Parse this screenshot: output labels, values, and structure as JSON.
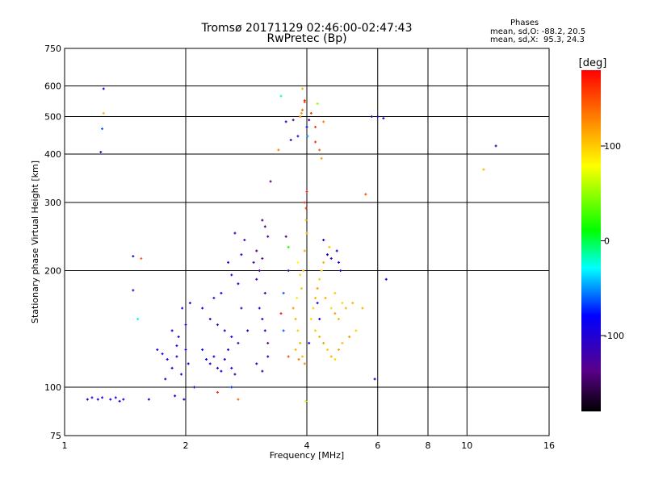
{
  "title_line1": "Tromsø 20171129 02:46:00-02:47:43",
  "title_line2": "RwPretec (Bp)",
  "stats": {
    "heading": "Phases",
    "line1": "mean, sd,O: -88.2, 20.5",
    "line2": "mean, sd,X:  95.3, 24.3"
  },
  "colorbar": {
    "title": "[deg]",
    "ticks": [
      {
        "value": 100,
        "label": "100"
      },
      {
        "value": 0,
        "label": "0"
      },
      {
        "value": -100,
        "label": "-100"
      }
    ],
    "range": [
      -180,
      180
    ],
    "gradient": [
      "#000000",
      "#5a008a",
      "#0000ff",
      "#00ffff",
      "#00ff00",
      "#ffff00",
      "#ff8000",
      "#ff0000"
    ]
  },
  "chart_data": {
    "type": "scatter",
    "xlabel": "Frequency [MHz]",
    "ylabel": "Stationary phase Virtual Height [km]",
    "xscale": "log",
    "yscale": "log",
    "xlim": [
      1,
      16
    ],
    "ylim": [
      75,
      750
    ],
    "grid": true,
    "xticks": [
      {
        "value": 1,
        "label": "1"
      },
      {
        "value": 2,
        "label": "2"
      },
      {
        "value": 4,
        "label": "4"
      },
      {
        "value": 6,
        "label": "6"
      },
      {
        "value": 8,
        "label": "8"
      },
      {
        "value": 10,
        "label": "10"
      },
      {
        "value": 16,
        "label": "16"
      }
    ],
    "yticks": [
      {
        "value": 75,
        "label": "75"
      },
      {
        "value": 100,
        "label": "100"
      },
      {
        "value": 200,
        "label": "200"
      },
      {
        "value": 300,
        "label": "300"
      },
      {
        "value": 400,
        "label": "400"
      },
      {
        "value": 500,
        "label": "500"
      },
      {
        "value": 600,
        "label": "600"
      },
      {
        "value": 750,
        "label": "750"
      }
    ],
    "color_variable": "phase [deg]",
    "points": [
      [
        1.14,
        93,
        -95
      ],
      [
        1.17,
        94,
        -100
      ],
      [
        1.21,
        93,
        -90
      ],
      [
        1.24,
        94,
        -95
      ],
      [
        1.3,
        93,
        -100
      ],
      [
        1.34,
        94,
        -92
      ],
      [
        1.37,
        92,
        -98
      ],
      [
        1.4,
        93,
        -95
      ],
      [
        1.25,
        590,
        -100
      ],
      [
        1.25,
        510,
        110
      ],
      [
        1.24,
        465,
        -60
      ],
      [
        1.23,
        405,
        -110
      ],
      [
        1.48,
        218,
        -100
      ],
      [
        1.55,
        215,
        140
      ],
      [
        1.48,
        178,
        -110
      ],
      [
        1.52,
        150,
        -30
      ],
      [
        1.62,
        93,
        -100
      ],
      [
        1.7,
        125,
        -100
      ],
      [
        1.75,
        122,
        -90
      ],
      [
        1.8,
        118,
        -95
      ],
      [
        1.85,
        112,
        -110
      ],
      [
        1.9,
        120,
        -100
      ],
      [
        1.95,
        108,
        -95
      ],
      [
        2.0,
        125,
        -85
      ],
      [
        1.78,
        105,
        -100
      ],
      [
        1.88,
        95,
        -90
      ],
      [
        1.98,
        93,
        -95
      ],
      [
        1.85,
        140,
        -90
      ],
      [
        1.92,
        135,
        -100
      ],
      [
        2.0,
        145,
        -80
      ],
      [
        1.96,
        160,
        -90
      ],
      [
        2.05,
        165,
        -100
      ],
      [
        1.9,
        128,
        -95
      ],
      [
        2.03,
        115,
        -105
      ],
      [
        2.1,
        100,
        -100
      ],
      [
        2.2,
        125,
        -90
      ],
      [
        2.25,
        118,
        -80
      ],
      [
        2.3,
        115,
        -100
      ],
      [
        2.35,
        120,
        -95
      ],
      [
        2.4,
        112,
        -110
      ],
      [
        2.45,
        110,
        -100
      ],
      [
        2.5,
        118,
        -90
      ],
      [
        2.55,
        125,
        -100
      ],
      [
        2.6,
        112,
        -95
      ],
      [
        2.65,
        108,
        -100
      ],
      [
        2.2,
        160,
        -90
      ],
      [
        2.3,
        150,
        -100
      ],
      [
        2.4,
        145,
        -110
      ],
      [
        2.5,
        140,
        -100
      ],
      [
        2.6,
        135,
        -95
      ],
      [
        2.7,
        130,
        -110
      ],
      [
        2.35,
        170,
        -105
      ],
      [
        2.45,
        175,
        -90
      ],
      [
        2.55,
        210,
        -95
      ],
      [
        2.6,
        195,
        -110
      ],
      [
        2.7,
        185,
        -100
      ],
      [
        2.65,
        250,
        -115
      ],
      [
        2.75,
        220,
        -100
      ],
      [
        2.8,
        240,
        -120
      ],
      [
        2.75,
        160,
        -110
      ],
      [
        2.85,
        140,
        -100
      ],
      [
        2.4,
        97,
        160
      ],
      [
        2.7,
        93,
        140
      ],
      [
        2.6,
        100,
        -70
      ],
      [
        2.95,
        210,
        -130
      ],
      [
        3.0,
        225,
        -140
      ],
      [
        3.05,
        200,
        -120
      ],
      [
        3.1,
        215,
        -135
      ],
      [
        3.15,
        260,
        -140
      ],
      [
        3.2,
        245,
        -130
      ],
      [
        3.1,
        270,
        -145
      ],
      [
        3.0,
        190,
        -125
      ],
      [
        3.05,
        160,
        -110
      ],
      [
        3.1,
        150,
        -100
      ],
      [
        3.15,
        140,
        -115
      ],
      [
        3.2,
        120,
        -105
      ],
      [
        3.0,
        115,
        -100
      ],
      [
        3.1,
        110,
        -120
      ],
      [
        3.2,
        130,
        -140
      ],
      [
        3.15,
        175,
        -125
      ],
      [
        3.25,
        340,
        -140
      ],
      [
        3.45,
        565,
        -20
      ],
      [
        3.4,
        410,
        130
      ],
      [
        3.55,
        245,
        -140
      ],
      [
        3.6,
        230,
        20
      ],
      [
        3.45,
        155,
        170
      ],
      [
        3.5,
        175,
        -60
      ],
      [
        3.6,
        200,
        -120
      ],
      [
        3.55,
        485,
        -110
      ],
      [
        3.65,
        435,
        -120
      ],
      [
        3.7,
        490,
        -130
      ],
      [
        3.8,
        445,
        -100
      ],
      [
        3.85,
        500,
        130
      ],
      [
        3.9,
        520,
        140
      ],
      [
        3.95,
        545,
        150
      ],
      [
        3.9,
        590,
        110
      ],
      [
        3.95,
        550,
        170
      ],
      [
        3.88,
        510,
        120
      ],
      [
        4.0,
        470,
        -80
      ],
      [
        4.02,
        445,
        -40
      ],
      [
        4.05,
        490,
        -130
      ],
      [
        4.1,
        510,
        160
      ],
      [
        4.2,
        470,
        160
      ],
      [
        4.25,
        540,
        50
      ],
      [
        4.4,
        485,
        130
      ],
      [
        3.95,
        300,
        160
      ],
      [
        3.98,
        290,
        150
      ],
      [
        4.0,
        320,
        170
      ],
      [
        4.2,
        430,
        160
      ],
      [
        4.3,
        410,
        140
      ],
      [
        4.35,
        390,
        120
      ],
      [
        3.7,
        160,
        120
      ],
      [
        3.75,
        150,
        110
      ],
      [
        3.8,
        140,
        100
      ],
      [
        3.85,
        130,
        115
      ],
      [
        3.9,
        120,
        105
      ],
      [
        3.95,
        115,
        125
      ],
      [
        3.78,
        170,
        90
      ],
      [
        3.88,
        180,
        100
      ],
      [
        3.92,
        200,
        110
      ],
      [
        3.85,
        195,
        95
      ],
      [
        3.8,
        210,
        80
      ],
      [
        3.95,
        225,
        110
      ],
      [
        4.0,
        250,
        120
      ],
      [
        3.98,
        270,
        100
      ],
      [
        3.75,
        125,
        110
      ],
      [
        3.82,
        118,
        130
      ],
      [
        4.1,
        150,
        95
      ],
      [
        4.15,
        160,
        100
      ],
      [
        4.2,
        170,
        110
      ],
      [
        4.25,
        180,
        120
      ],
      [
        4.3,
        190,
        100
      ],
      [
        4.35,
        200,
        95
      ],
      [
        4.4,
        210,
        110
      ],
      [
        4.5,
        220,
        100
      ],
      [
        4.55,
        230,
        105
      ],
      [
        4.45,
        170,
        115
      ],
      [
        4.6,
        160,
        95
      ],
      [
        4.7,
        155,
        120
      ],
      [
        4.8,
        150,
        110
      ],
      [
        4.7,
        175,
        100
      ],
      [
        4.9,
        165,
        95
      ],
      [
        5.0,
        160,
        110
      ],
      [
        4.2,
        140,
        100
      ],
      [
        4.3,
        135,
        110
      ],
      [
        4.4,
        130,
        120
      ],
      [
        4.5,
        125,
        100
      ],
      [
        4.6,
        120,
        110
      ],
      [
        4.7,
        118,
        95
      ],
      [
        4.8,
        125,
        115
      ],
      [
        4.9,
        130,
        105
      ],
      [
        4.4,
        240,
        -100
      ],
      [
        4.5,
        220,
        -90
      ],
      [
        4.6,
        215,
        -110
      ],
      [
        4.75,
        225,
        -100
      ],
      [
        4.8,
        210,
        -95
      ],
      [
        4.85,
        200,
        -105
      ],
      [
        4.3,
        150,
        -100
      ],
      [
        4.25,
        165,
        -95
      ],
      [
        5.2,
        165,
        110
      ],
      [
        5.3,
        140,
        100
      ],
      [
        5.1,
        135,
        120
      ],
      [
        5.5,
        160,
        110
      ],
      [
        5.6,
        315,
        150
      ],
      [
        5.8,
        500,
        -120
      ],
      [
        6.0,
        500,
        -110
      ],
      [
        5.9,
        105,
        -90
      ],
      [
        6.3,
        190,
        -100
      ],
      [
        6.2,
        495,
        -100
      ],
      [
        3.98,
        92,
        60
      ],
      [
        4.05,
        130,
        -100
      ],
      [
        3.6,
        120,
        150
      ],
      [
        3.5,
        140,
        -60
      ],
      [
        11.8,
        420,
        -110
      ],
      [
        11.0,
        365,
        110
      ]
    ]
  }
}
